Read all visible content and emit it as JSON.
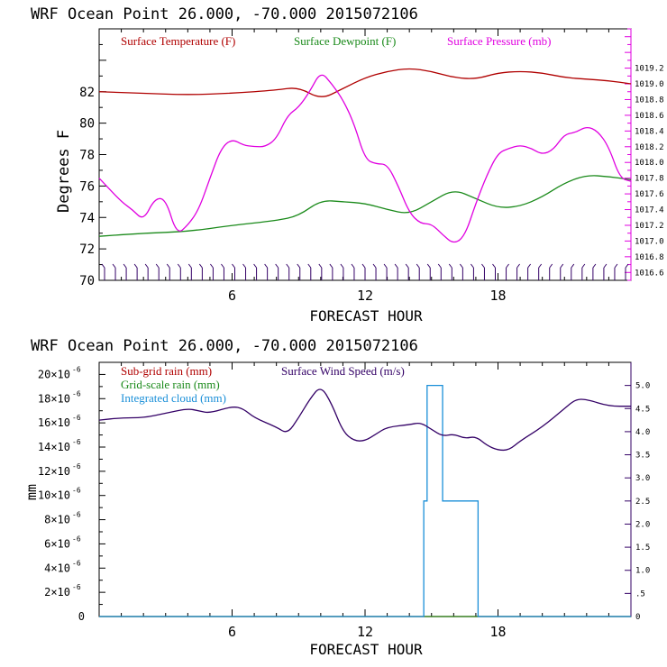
{
  "chart_data": [
    {
      "type": "line",
      "title": "WRF   Ocean Point   26.000, -70.000  2015072106",
      "xlabel": "FORECAST HOUR",
      "ylabel": "Degrees F",
      "xlim": [
        0,
        24
      ],
      "ylim": [
        70,
        86
      ],
      "y2lim": [
        1016.5,
        1019.7
      ],
      "xticks": [
        6,
        12,
        18
      ],
      "yticks": [
        70,
        72,
        74,
        76,
        78,
        80,
        82
      ],
      "y2ticks": [
        "1016.6",
        "1016.8",
        "1017.0",
        "1017.2",
        "1017.4",
        "1017.6",
        "1017.8",
        "1018.0",
        "1018.2",
        "1018.4",
        "1018.6",
        "1018.8",
        "1019.0",
        "1019.2"
      ],
      "legend_position": "top",
      "wind_barbs": "bottom",
      "colors": {
        "temperature": "#b00000",
        "dewpoint": "#1a8a1a",
        "pressure": "#e000e0"
      },
      "series": [
        {
          "name": "Surface Temperature (F)",
          "axis": "left",
          "x": [
            0,
            2,
            4,
            6,
            8,
            9,
            10,
            11,
            12,
            13,
            14,
            15,
            16,
            17,
            18,
            19,
            20,
            21,
            22,
            23,
            24
          ],
          "y": [
            82.0,
            81.9,
            81.8,
            81.9,
            82.1,
            82.3,
            81.5,
            82.2,
            82.9,
            83.3,
            83.5,
            83.3,
            82.9,
            82.8,
            83.2,
            83.3,
            83.2,
            82.9,
            82.8,
            82.7,
            82.5
          ]
        },
        {
          "name": "Surface Dewpoint (F)",
          "axis": "left",
          "x": [
            0,
            2,
            4,
            6,
            8,
            9,
            10,
            11,
            12,
            13,
            14,
            15,
            16,
            17,
            18,
            19,
            20,
            21,
            22,
            23,
            24
          ],
          "y": [
            72.8,
            73.0,
            73.1,
            73.5,
            73.8,
            74.1,
            75.1,
            75.0,
            74.9,
            74.5,
            74.2,
            75.0,
            75.8,
            75.2,
            74.6,
            74.7,
            75.3,
            76.2,
            76.7,
            76.6,
            76.4
          ]
        },
        {
          "name": "Surface Pressure (mb)",
          "axis": "right",
          "x": [
            0,
            1,
            1.5,
            2,
            2.5,
            3,
            3.5,
            4,
            4.5,
            5,
            5.5,
            6,
            6.5,
            7,
            7.5,
            8,
            8.5,
            9,
            9.5,
            10,
            10.5,
            11,
            11.5,
            12,
            12.5,
            13,
            13.5,
            14,
            14.5,
            15,
            15.5,
            16,
            16.5,
            17,
            17.5,
            18,
            18.5,
            19,
            19.5,
            20,
            20.5,
            21,
            21.5,
            22,
            22.5,
            23,
            23.5,
            24
          ],
          "y": [
            1017.7,
            1017.3,
            1017.2,
            1017.4,
            1017.4,
            1017.3,
            1016.95,
            1017.1,
            1017.3,
            1017.7,
            1018.0,
            1018.3,
            1018.3,
            1018.3,
            1018.35,
            1018.5,
            1018.75,
            1018.9,
            1019.1,
            1019.3,
            1018.9,
            1018.5,
            1018.0,
            1017.8,
            1017.7,
            1017.6,
            1017.4,
            1017.2,
            1017.05,
            1017.0,
            1016.9,
            1016.9,
            1017.0,
            1017.3,
            1017.6,
            1017.9,
            1018.2,
            1018.3,
            1018.3,
            1018.25,
            1018.35,
            1018.55,
            1018.6,
            1018.6,
            1018.5,
            1018.2,
            1017.6,
            1017.2
          ],
          "plot_as_left_units": true,
          "y_on_left_scale": [
            76.5,
            75,
            74.5,
            73.8,
            75.2,
            75.2,
            72.9,
            73.5,
            74.5,
            76.5,
            78.4,
            79.0,
            78.6,
            78.5,
            78.5,
            79.0,
            80.5,
            81.0,
            82.0,
            83.3,
            82.5,
            81.5,
            80.0,
            77.7,
            77.4,
            77.4,
            76.0,
            74.3,
            73.6,
            73.6,
            72.9,
            72.3,
            72.8,
            74.9,
            76.7,
            78.1,
            78.4,
            78.6,
            78.4,
            78.0,
            78.3,
            79.3,
            79.4,
            79.8,
            79.5,
            78.5,
            76.5,
            76.3
          ]
        }
      ]
    },
    {
      "type": "line",
      "title": "WRF   Ocean Point   26.000, -70.000  2015072106",
      "xlabel": "FORECAST HOUR",
      "ylabel": "mm",
      "xlim": [
        0,
        24
      ],
      "ylim": [
        0,
        2.1e-05
      ],
      "y2lim": [
        0,
        5.5
      ],
      "xticks": [
        6,
        12,
        18
      ],
      "yticks_mantissa": [
        "2",
        "4",
        "6",
        "8",
        "10",
        "12",
        "14",
        "16",
        "18",
        "20"
      ],
      "ytick_exponent": "-6",
      "ytick_zero": "0",
      "y2ticks": [
        "0",
        ".5",
        "1.0",
        "1.5",
        "2.0",
        "2.5",
        "3.0",
        "3.5",
        "4.0",
        "4.5",
        "5.0"
      ],
      "legend_position": "top-left",
      "colors": {
        "subgrid": "#b00000",
        "gridscale": "#1a8a1a",
        "cloud": "#1a8fd8",
        "wind": "#330066"
      },
      "series": [
        {
          "name": "Sub-grid rain (mm)",
          "axis": "left",
          "x": [
            0,
            24
          ],
          "y": [
            0,
            0
          ]
        },
        {
          "name": "Grid-scale rain (mm)",
          "axis": "left",
          "x": [
            0,
            24
          ],
          "y": [
            0,
            0
          ]
        },
        {
          "name": "Integrated cloud (mm)",
          "axis": "right",
          "x": [
            0,
            14.65,
            14.65,
            14.8,
            14.8,
            15.5,
            15.5,
            17.1,
            17.1,
            24
          ],
          "y": [
            0,
            0,
            2.5,
            2.5,
            5.0,
            5.0,
            2.5,
            2.5,
            0,
            0
          ]
        },
        {
          "name": "Surface Wind Speed (m/s)",
          "axis": "right",
          "x": [
            0,
            1,
            2,
            3,
            4,
            4.5,
            5,
            6,
            6.5,
            7,
            8,
            8.5,
            9,
            9.5,
            10,
            10.5,
            11,
            11.5,
            12,
            12.5,
            13,
            14,
            14.5,
            15,
            15.5,
            16,
            16.5,
            17,
            17.5,
            18,
            18.5,
            19,
            20,
            21,
            21.5,
            22,
            23,
            24
          ],
          "y": [
            4.25,
            4.3,
            4.3,
            4.4,
            4.5,
            4.45,
            4.4,
            4.55,
            4.5,
            4.3,
            4.1,
            3.95,
            4.3,
            4.7,
            5.0,
            4.6,
            4.0,
            3.8,
            3.8,
            3.95,
            4.1,
            4.15,
            4.2,
            4.05,
            3.9,
            3.95,
            3.85,
            3.9,
            3.7,
            3.6,
            3.6,
            3.8,
            4.1,
            4.5,
            4.7,
            4.7,
            4.55,
            4.55
          ]
        }
      ]
    }
  ]
}
